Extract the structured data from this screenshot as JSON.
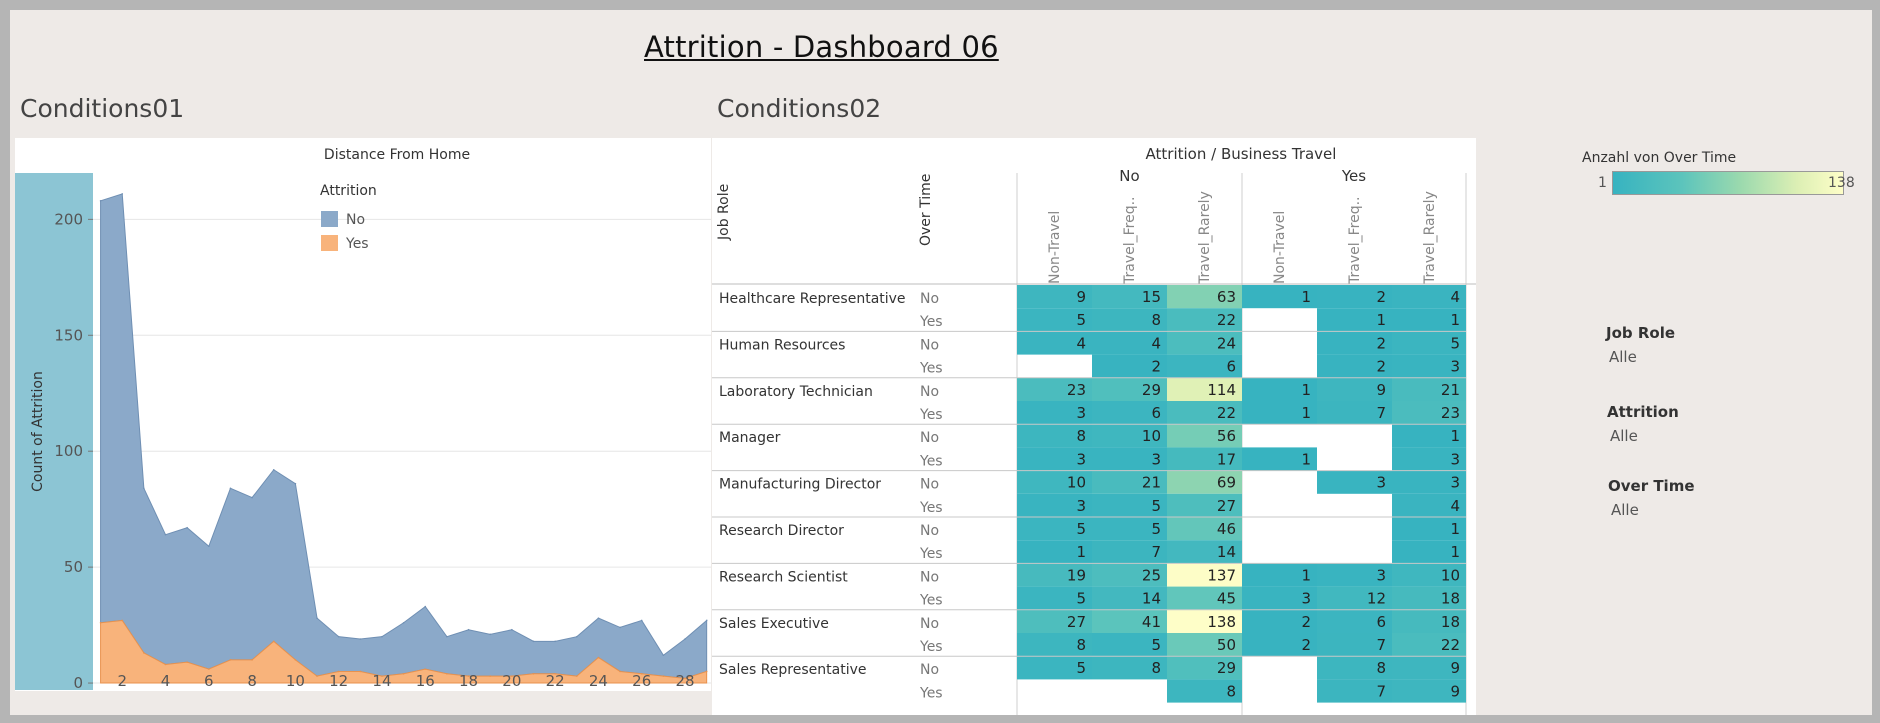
{
  "dashboard": {
    "title": "Attrition - Dashboard 06",
    "section1_title": "Conditions01",
    "section2_title": "Conditions02"
  },
  "colors": {
    "no": "#8ba9c9",
    "yes": "#f8b37b",
    "axis_band": "#8cc5d4",
    "ramp_low": "#37b3c0",
    "ramp_high": "#fefec8"
  },
  "chart_data": [
    {
      "type": "area",
      "title": "Distance From Home",
      "xlabel": "",
      "ylabel": "Count of Attrition",
      "legend_title": "Attrition",
      "legend_position": "top-center",
      "stacked": true,
      "x": [
        1,
        2,
        3,
        4,
        5,
        6,
        7,
        8,
        9,
        10,
        11,
        12,
        13,
        14,
        15,
        16,
        17,
        18,
        19,
        20,
        21,
        22,
        23,
        24,
        25,
        26,
        27,
        28,
        29
      ],
      "x_ticks": [
        "2",
        "4",
        "6",
        "8",
        "10",
        "12",
        "14",
        "16",
        "18",
        "20",
        "22",
        "24",
        "26",
        "28"
      ],
      "y_ticks": [
        "0",
        "50",
        "100",
        "150",
        "200"
      ],
      "ylim": [
        -3,
        220
      ],
      "grid": true,
      "series": [
        {
          "name": "No",
          "values": [
            182,
            184,
            71,
            56,
            58,
            53,
            74,
            70,
            74,
            76,
            25,
            15,
            14,
            17,
            22,
            27,
            16,
            20,
            18,
            20,
            14,
            14,
            17,
            17,
            19,
            23,
            9,
            17,
            22
          ]
        },
        {
          "name": "Yes",
          "values": [
            26,
            27,
            13,
            8,
            9,
            6,
            10,
            10,
            18,
            10,
            3,
            5,
            5,
            3,
            4,
            6,
            4,
            3,
            3,
            3,
            4,
            4,
            3,
            11,
            5,
            4,
            3,
            2,
            5
          ]
        }
      ]
    },
    {
      "type": "heatmap",
      "title": "Attrition / Business Travel",
      "row_headers": [
        "Job Role",
        "Over Time"
      ],
      "column_groups": [
        {
          "name": "No",
          "columns": [
            "Non-Travel",
            "Travel_Freq..",
            "Travel_Rarely"
          ]
        },
        {
          "name": "Yes",
          "columns": [
            "Non-Travel",
            "Travel_Freq..",
            "Travel_Rarely"
          ]
        }
      ],
      "color_legend": {
        "title": "Anzahl von Over Time",
        "min": 1,
        "max": 138
      },
      "rows": [
        {
          "role": "Healthcare Representative",
          "overtime": [
            "No",
            "Yes"
          ],
          "values": [
            [
              9,
              15,
              63,
              1,
              2,
              4
            ],
            [
              5,
              8,
              22,
              null,
              1,
              1
            ]
          ]
        },
        {
          "role": "Human Resources",
          "overtime": [
            "No",
            "Yes"
          ],
          "values": [
            [
              4,
              4,
              24,
              null,
              2,
              5
            ],
            [
              null,
              2,
              6,
              null,
              2,
              3
            ]
          ]
        },
        {
          "role": "Laboratory Technician",
          "overtime": [
            "No",
            "Yes"
          ],
          "values": [
            [
              23,
              29,
              114,
              1,
              9,
              21
            ],
            [
              3,
              6,
              22,
              1,
              7,
              23
            ]
          ]
        },
        {
          "role": "Manager",
          "overtime": [
            "No",
            "Yes"
          ],
          "values": [
            [
              8,
              10,
              56,
              null,
              null,
              1
            ],
            [
              3,
              3,
              17,
              1,
              null,
              3
            ]
          ]
        },
        {
          "role": "Manufacturing Director",
          "overtime": [
            "No",
            "Yes"
          ],
          "values": [
            [
              10,
              21,
              69,
              null,
              3,
              3
            ],
            [
              3,
              5,
              27,
              null,
              null,
              4
            ]
          ]
        },
        {
          "role": "Research Director",
          "overtime": [
            "No",
            "Yes"
          ],
          "values": [
            [
              5,
              5,
              46,
              null,
              null,
              1
            ],
            [
              1,
              7,
              14,
              null,
              null,
              1
            ]
          ]
        },
        {
          "role": "Research Scientist",
          "overtime": [
            "No",
            "Yes"
          ],
          "values": [
            [
              19,
              25,
              137,
              1,
              3,
              10
            ],
            [
              5,
              14,
              45,
              3,
              12,
              18
            ]
          ]
        },
        {
          "role": "Sales Executive",
          "overtime": [
            "No",
            "Yes"
          ],
          "values": [
            [
              27,
              41,
              138,
              2,
              6,
              18
            ],
            [
              8,
              5,
              50,
              2,
              7,
              22
            ]
          ]
        },
        {
          "role": "Sales Representative",
          "overtime": [
            "No",
            "Yes"
          ],
          "values": [
            [
              5,
              8,
              29,
              null,
              8,
              9
            ],
            [
              null,
              null,
              8,
              null,
              7,
              9
            ]
          ]
        }
      ]
    }
  ],
  "filters": [
    {
      "label": "Job Role",
      "value": "Alle"
    },
    {
      "label": "Attrition",
      "value": "Alle"
    },
    {
      "label": "Over Time",
      "value": "Alle"
    }
  ]
}
